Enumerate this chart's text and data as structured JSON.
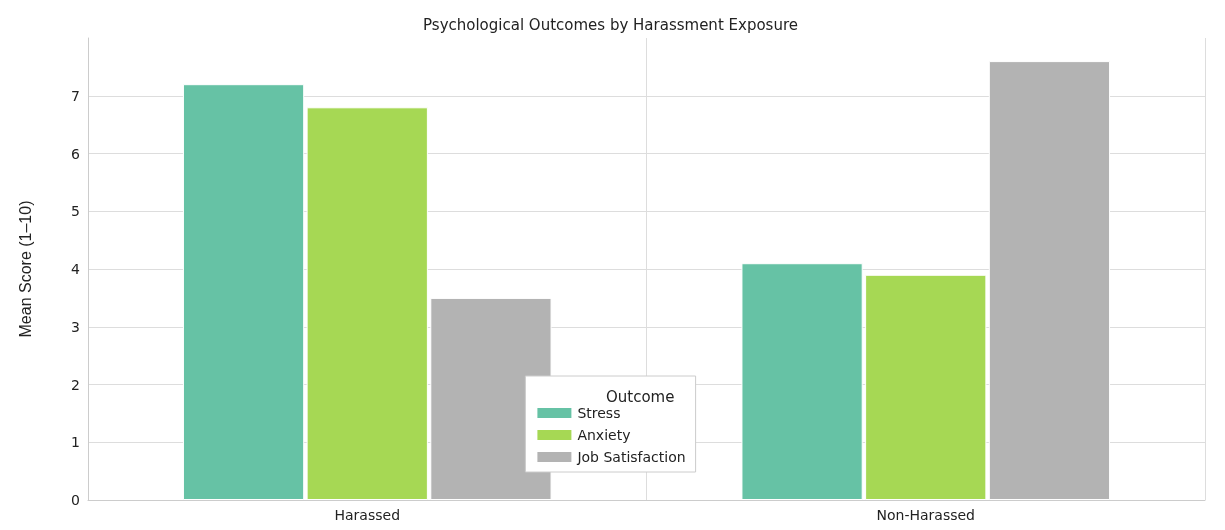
{
  "chart_data": {
    "type": "bar",
    "title": "Psychological Outcomes by Harassment Exposure",
    "ylabel": "Mean Score (1–10)",
    "legend_title": "Outcome",
    "categories": [
      "Harassed",
      "Non-Harassed"
    ],
    "series": [
      {
        "name": "Stress",
        "color": "#66c2a5",
        "values": [
          7.2,
          4.1
        ]
      },
      {
        "name": "Anxiety",
        "color": "#a6d854",
        "values": [
          6.8,
          3.9
        ]
      },
      {
        "name": "Job Satisfaction",
        "color": "#b3b3b3",
        "values": [
          3.5,
          7.6
        ]
      }
    ],
    "ylim": [
      0,
      8
    ],
    "yticks": [
      0,
      1,
      2,
      3,
      4,
      5,
      6,
      7
    ],
    "grid": true,
    "legend": "bottom"
  }
}
